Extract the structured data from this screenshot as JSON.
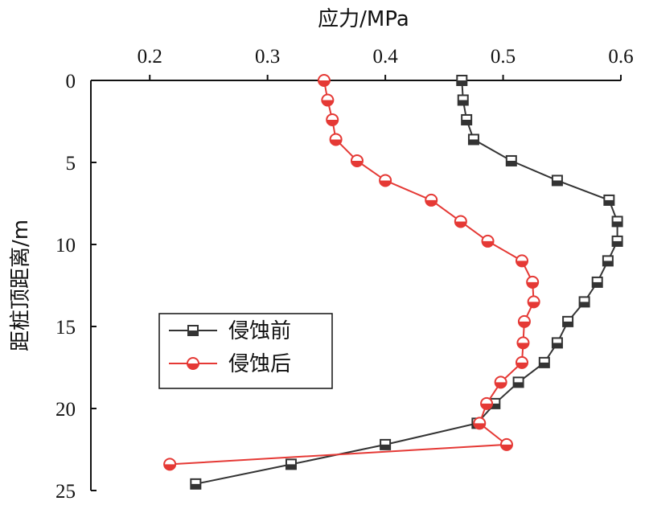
{
  "chart_data": {
    "type": "line",
    "xlabel": "应力/MPa",
    "ylabel": "距桩顶距离/m",
    "xlim": [
      0.15,
      0.6
    ],
    "ylim": [
      0,
      25
    ],
    "x_ticks": [
      "0.2",
      "0.3",
      "0.4",
      "0.5",
      "0.6"
    ],
    "y_ticks": [
      "0",
      "5",
      "10",
      "15",
      "20",
      "25"
    ],
    "x_axis_position": "top",
    "y_axis_inverted": true,
    "grid": false,
    "legend_position": "center-left",
    "series": [
      {
        "name": "侵蚀前",
        "color": "#333333",
        "marker": "square",
        "points": [
          {
            "x": 0.465,
            "y": 0
          },
          {
            "x": 0.466,
            "y": 1.2
          },
          {
            "x": 0.469,
            "y": 2.4
          },
          {
            "x": 0.475,
            "y": 3.6
          },
          {
            "x": 0.507,
            "y": 4.9
          },
          {
            "x": 0.546,
            "y": 6.1
          },
          {
            "x": 0.59,
            "y": 7.3
          },
          {
            "x": 0.597,
            "y": 8.6
          },
          {
            "x": 0.597,
            "y": 9.8
          },
          {
            "x": 0.589,
            "y": 11.0
          },
          {
            "x": 0.58,
            "y": 12.3
          },
          {
            "x": 0.569,
            "y": 13.5
          },
          {
            "x": 0.555,
            "y": 14.7
          },
          {
            "x": 0.546,
            "y": 16.0
          },
          {
            "x": 0.535,
            "y": 17.2
          },
          {
            "x": 0.513,
            "y": 18.4
          },
          {
            "x": 0.493,
            "y": 19.7
          },
          {
            "x": 0.478,
            "y": 20.9
          },
          {
            "x": 0.4,
            "y": 22.2
          },
          {
            "x": 0.32,
            "y": 23.4
          },
          {
            "x": 0.239,
            "y": 24.6
          }
        ]
      },
      {
        "name": "侵蚀后",
        "color": "#e53935",
        "marker": "circle",
        "points": [
          {
            "x": 0.348,
            "y": 0
          },
          {
            "x": 0.351,
            "y": 1.2
          },
          {
            "x": 0.355,
            "y": 2.4
          },
          {
            "x": 0.358,
            "y": 3.6
          },
          {
            "x": 0.376,
            "y": 4.9
          },
          {
            "x": 0.4,
            "y": 6.1
          },
          {
            "x": 0.439,
            "y": 7.3
          },
          {
            "x": 0.464,
            "y": 8.6
          },
          {
            "x": 0.487,
            "y": 9.8
          },
          {
            "x": 0.516,
            "y": 11.0
          },
          {
            "x": 0.525,
            "y": 12.3
          },
          {
            "x": 0.526,
            "y": 13.5
          },
          {
            "x": 0.518,
            "y": 14.7
          },
          {
            "x": 0.517,
            "y": 16.0
          },
          {
            "x": 0.516,
            "y": 17.2
          },
          {
            "x": 0.498,
            "y": 18.4
          },
          {
            "x": 0.486,
            "y": 19.7
          },
          {
            "x": 0.48,
            "y": 20.9
          },
          {
            "x": 0.503,
            "y": 22.2
          },
          {
            "x": 0.217,
            "y": 23.4
          }
        ]
      }
    ]
  }
}
